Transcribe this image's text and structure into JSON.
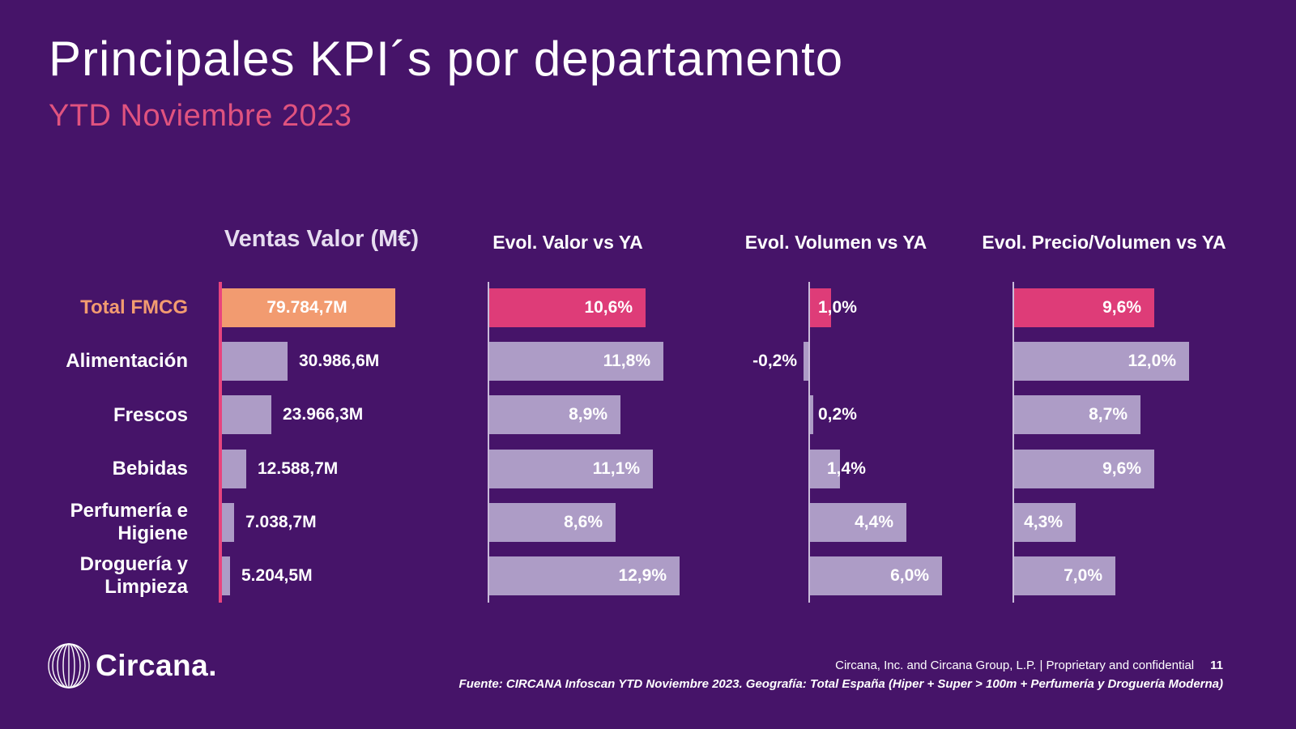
{
  "title": "Principales KPI´s por departamento",
  "subtitle": "YTD Noviembre 2023",
  "colors": {
    "background": "#461469",
    "bar_lavender": "#AD9CC6",
    "accent_pink": "#DE3C78",
    "accent_orange": "#F29B70",
    "axis_pink": "#E8447E",
    "axis_lavender": "#C9BCDA",
    "subtitle_pink": "#E0537F",
    "header_lavender": "#E6DDF0",
    "text_white": "#FFFFFF"
  },
  "chart_data": {
    "type": "bar",
    "orientation": "horizontal",
    "grid": false,
    "legend": "none",
    "categories": [
      "Total FMCG",
      "Alimentación",
      "Frescos",
      "Bebidas",
      "Perfumería e Higiene",
      "Droguería y Limpieza"
    ],
    "highlighted_category": "Total FMCG",
    "panels": [
      {
        "title": "Ventas Valor (M€)",
        "values": [
          79784.7,
          30986.6,
          23966.3,
          12588.7,
          7038.7,
          5204.5
        ],
        "labels": [
          "79.784,7M",
          "30.986,6M",
          "23.966,3M",
          "12.588,7M",
          "7.038,7M",
          "5.204,5M"
        ],
        "xlim": [
          0,
          79784.7
        ]
      },
      {
        "title": "Evol. Valor vs YA",
        "values": [
          10.6,
          11.8,
          8.9,
          11.1,
          8.6,
          12.9
        ],
        "labels": [
          "10,6%",
          "11,8%",
          "8,9%",
          "11,1%",
          "8,6%",
          "12,9%"
        ],
        "xlim": [
          0,
          12.9
        ]
      },
      {
        "title": "Evol. Volumen vs YA",
        "values": [
          1.0,
          -0.2,
          0.2,
          1.4,
          4.4,
          6.0
        ],
        "labels": [
          "1,0%",
          "-0,2%",
          "0,2%",
          "1,4%",
          "4,4%",
          "6,0%"
        ],
        "xlim": [
          -0.2,
          6.0
        ]
      },
      {
        "title": "Evol. Precio/Volumen vs YA",
        "values": [
          9.6,
          12.0,
          8.7,
          9.6,
          4.3,
          7.0
        ],
        "labels": [
          "9,6%",
          "12,0%",
          "8,7%",
          "9,6%",
          "4,3%",
          "7,0%"
        ],
        "xlim": [
          0,
          12.0
        ]
      }
    ]
  },
  "footer": {
    "logo_text": "Circana.",
    "line1": "Circana, Inc. and Circana Group, L.P. |  Proprietary and confidential",
    "page_number": "11",
    "source": "Fuente: CIRCANA Infoscan YTD Noviembre 2023. Geografía: Total España (Hiper + Super > 100m + Perfumería y Droguería Moderna)"
  }
}
